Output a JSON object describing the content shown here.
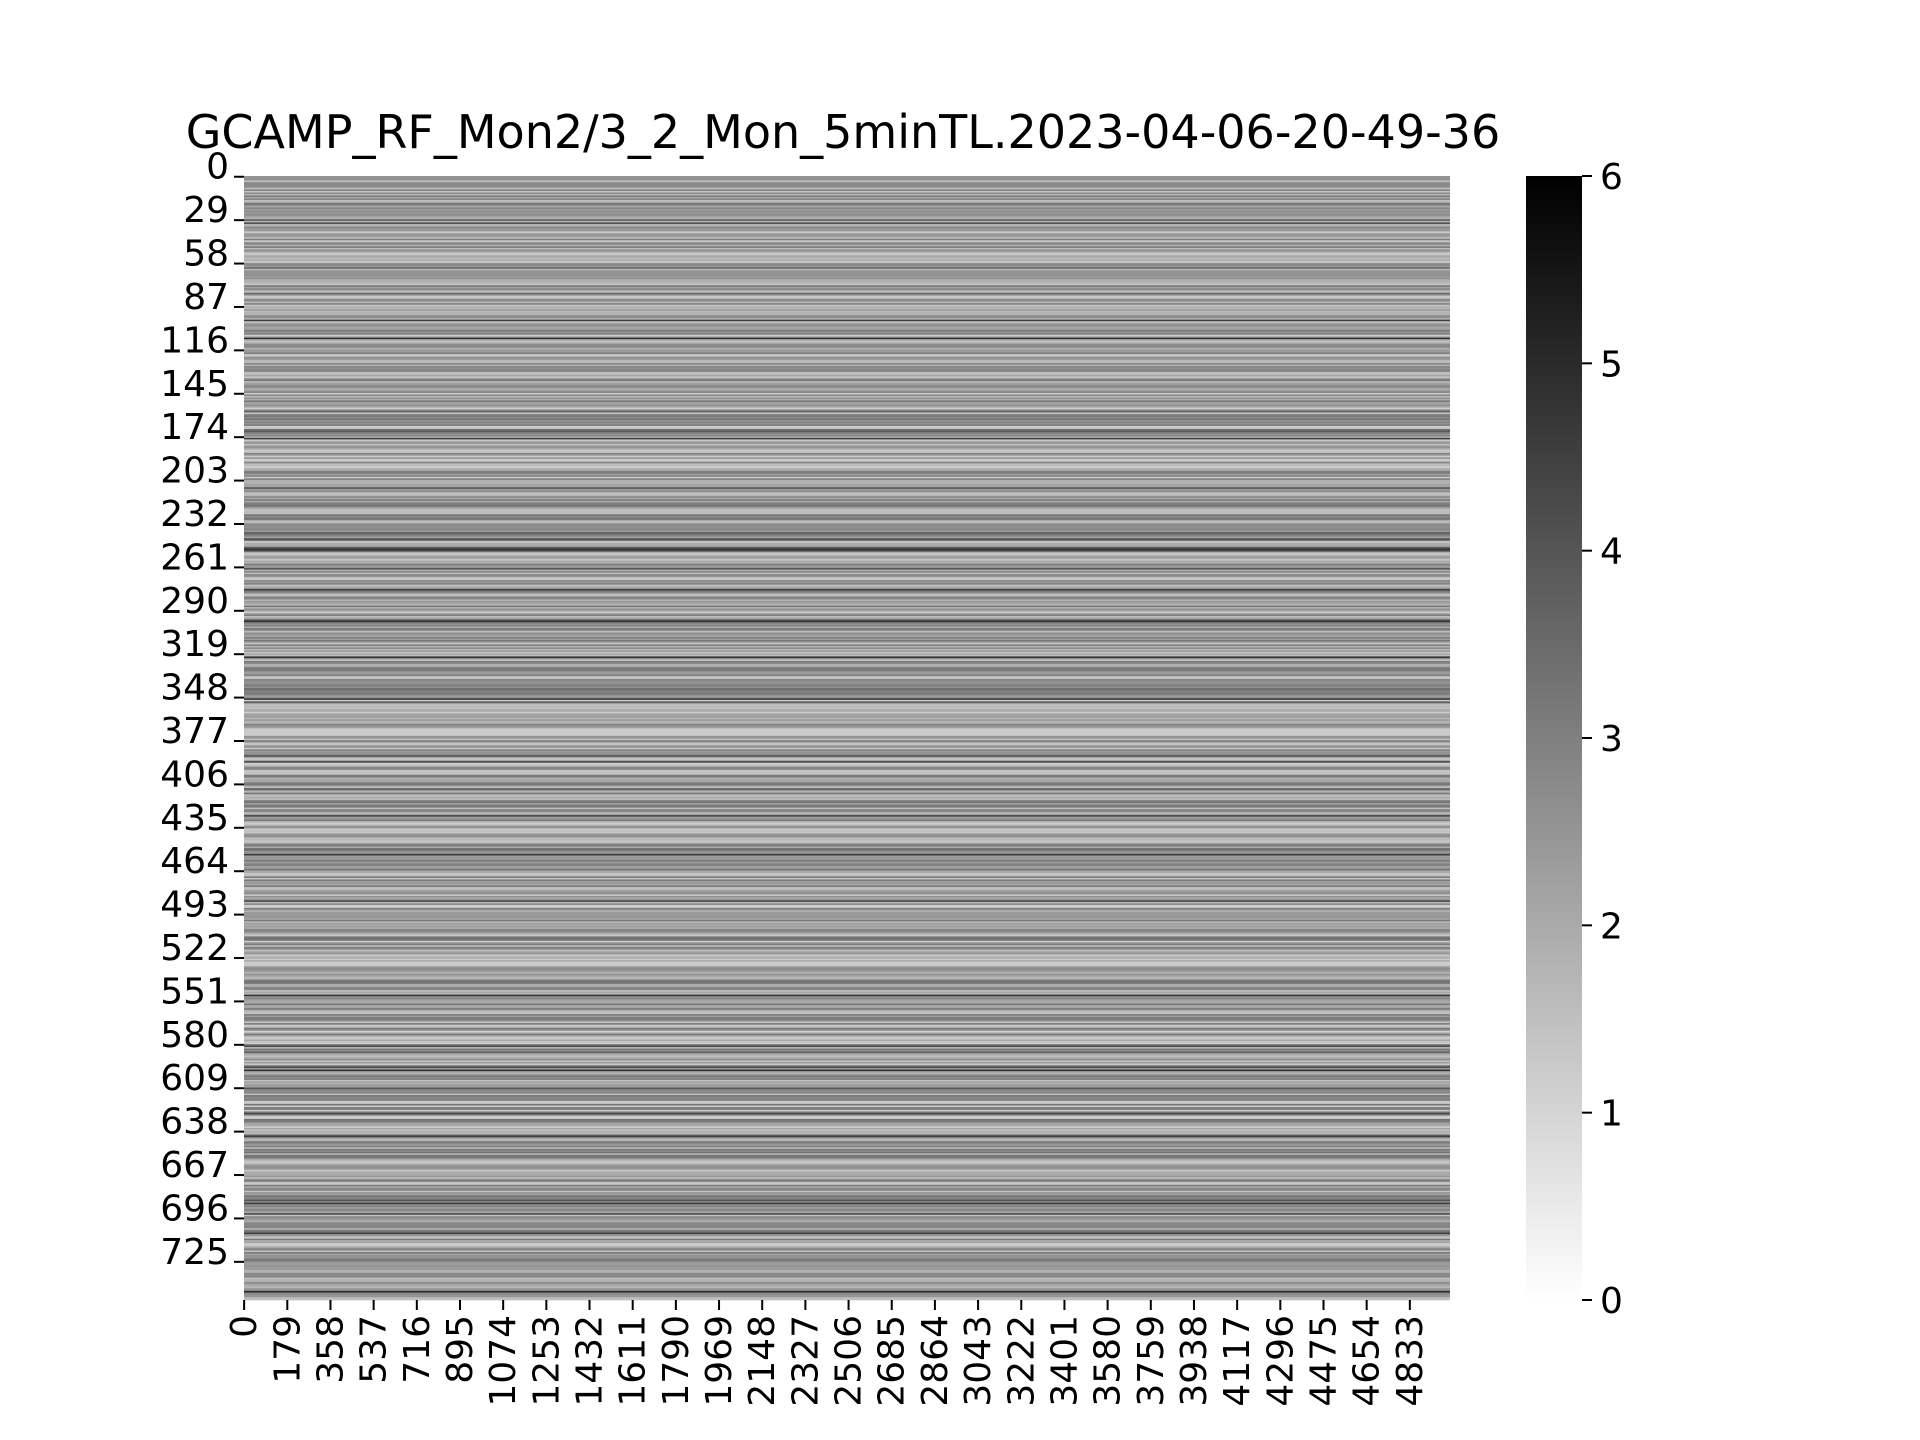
{
  "chart_data": {
    "type": "heatmap",
    "title": "GCAMP_RF_Mon2/3_2_Mon_5minTL.2023-04-06-20-49-36",
    "xlabel": "",
    "ylabel": "",
    "colormap": "Greys",
    "n_rows": 751,
    "n_cols": 5000,
    "x_tick_labels": [
      "0",
      "179",
      "358",
      "537",
      "716",
      "895",
      "1074",
      "1253",
      "1432",
      "1611",
      "1790",
      "1969",
      "2148",
      "2327",
      "2506",
      "2685",
      "2864",
      "3043",
      "3222",
      "3401",
      "3580",
      "3759",
      "3938",
      "4117",
      "4296",
      "4475",
      "4654",
      "4833"
    ],
    "y_tick_labels": [
      "0",
      "29",
      "58",
      "87",
      "116",
      "145",
      "174",
      "203",
      "232",
      "261",
      "290",
      "319",
      "348",
      "377",
      "406",
      "435",
      "464",
      "493",
      "522",
      "551",
      "580",
      "609",
      "638",
      "667",
      "696",
      "725"
    ],
    "colorbar": {
      "min": 0,
      "max": 6,
      "ticks": [
        "0",
        "1",
        "2",
        "3",
        "4",
        "5",
        "6"
      ]
    },
    "value_range": [
      0,
      6
    ],
    "grid": false
  }
}
